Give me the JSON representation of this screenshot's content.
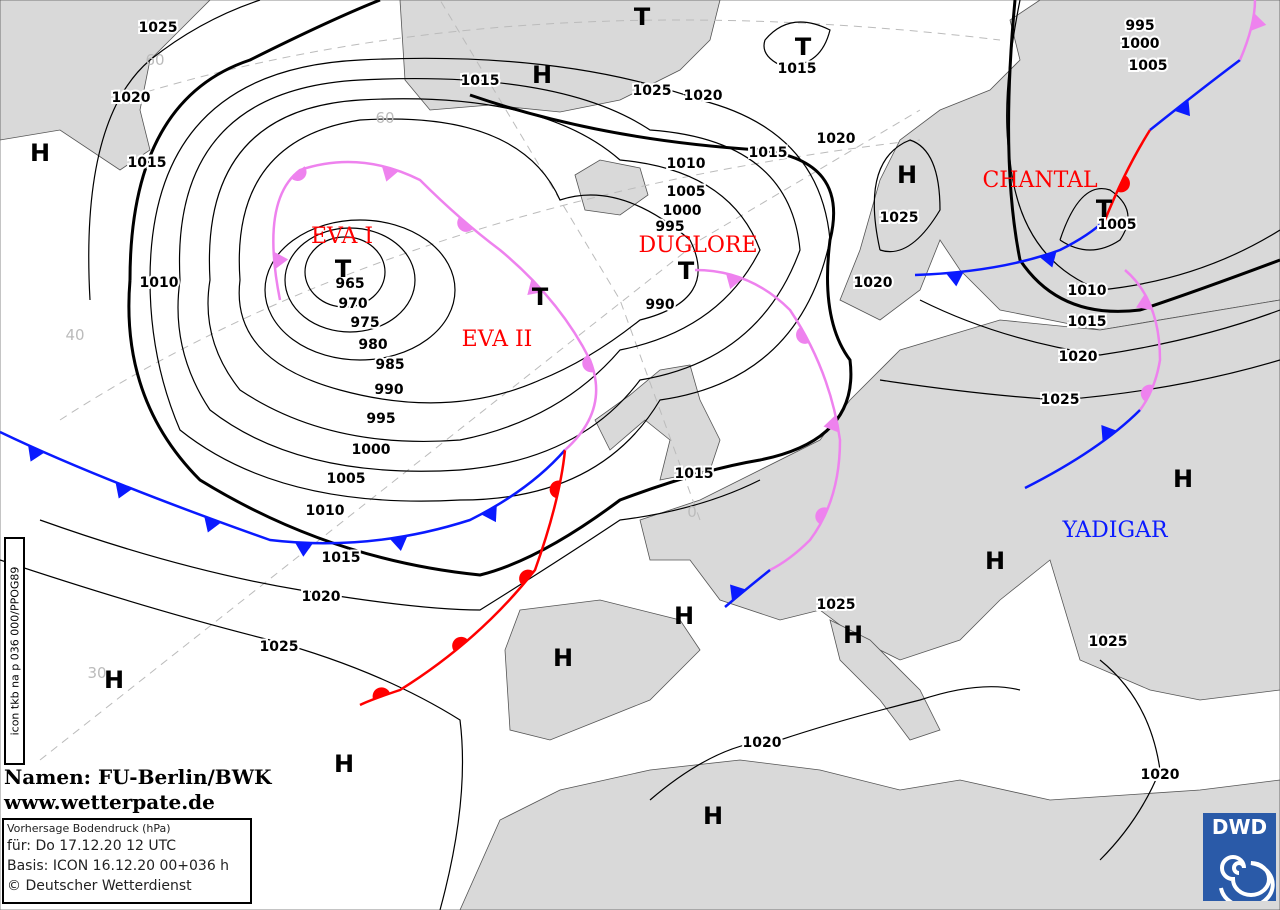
{
  "map": {
    "colors": {
      "land": "#d9d9d9",
      "sea": "#ffffff",
      "cold_front": "#0a1aff",
      "warm_front": "#ff0000",
      "occlusion": "#ee82ee",
      "name_low": "#ff0000",
      "name_high": "#0a1aff"
    },
    "isobar_labels": [
      "1025",
      "1020",
      "1015",
      "1010",
      "1015",
      "1025",
      "1020",
      "1015",
      "1020",
      "1015",
      "1010",
      "1005",
      "1000",
      "995",
      "990",
      "965",
      "970",
      "975",
      "980",
      "985",
      "990",
      "995",
      "1000",
      "1005",
      "1010",
      "1015",
      "1020",
      "1025",
      "1015",
      "1025",
      "1020",
      "995",
      "1000",
      "1005",
      "1005",
      "1010",
      "1015",
      "1020",
      "1025",
      "1025",
      "1025",
      "1020",
      "1020"
    ],
    "pressure_centers": [
      "H",
      "H",
      "T",
      "T",
      "H",
      "T",
      "T",
      "T",
      "T",
      "H",
      "H",
      "H",
      "H",
      "H",
      "H",
      "H",
      "H"
    ],
    "system_names": [
      "EVA I",
      "EVA II",
      "DUGLORE",
      "CHANTAL",
      "YADIGAR"
    ],
    "latitude_labels": [
      "60",
      "60",
      "40",
      "30",
      "0"
    ]
  },
  "sidebar_code": "icon tkb na p 036 000/PPOG89",
  "credit": {
    "line1": "Namen: FU-Berlin/BWK",
    "line2": "www.wetterpate.de"
  },
  "info_box": {
    "title": "Vorhersage Bodendruck (hPa)",
    "valid": "für:  Do 17.12.20  12 UTC",
    "basis": "Basis: ICON  16.12.20 00+036 h",
    "copyright": "© Deutscher Wetterdienst"
  },
  "logo": {
    "text": "DWD"
  }
}
